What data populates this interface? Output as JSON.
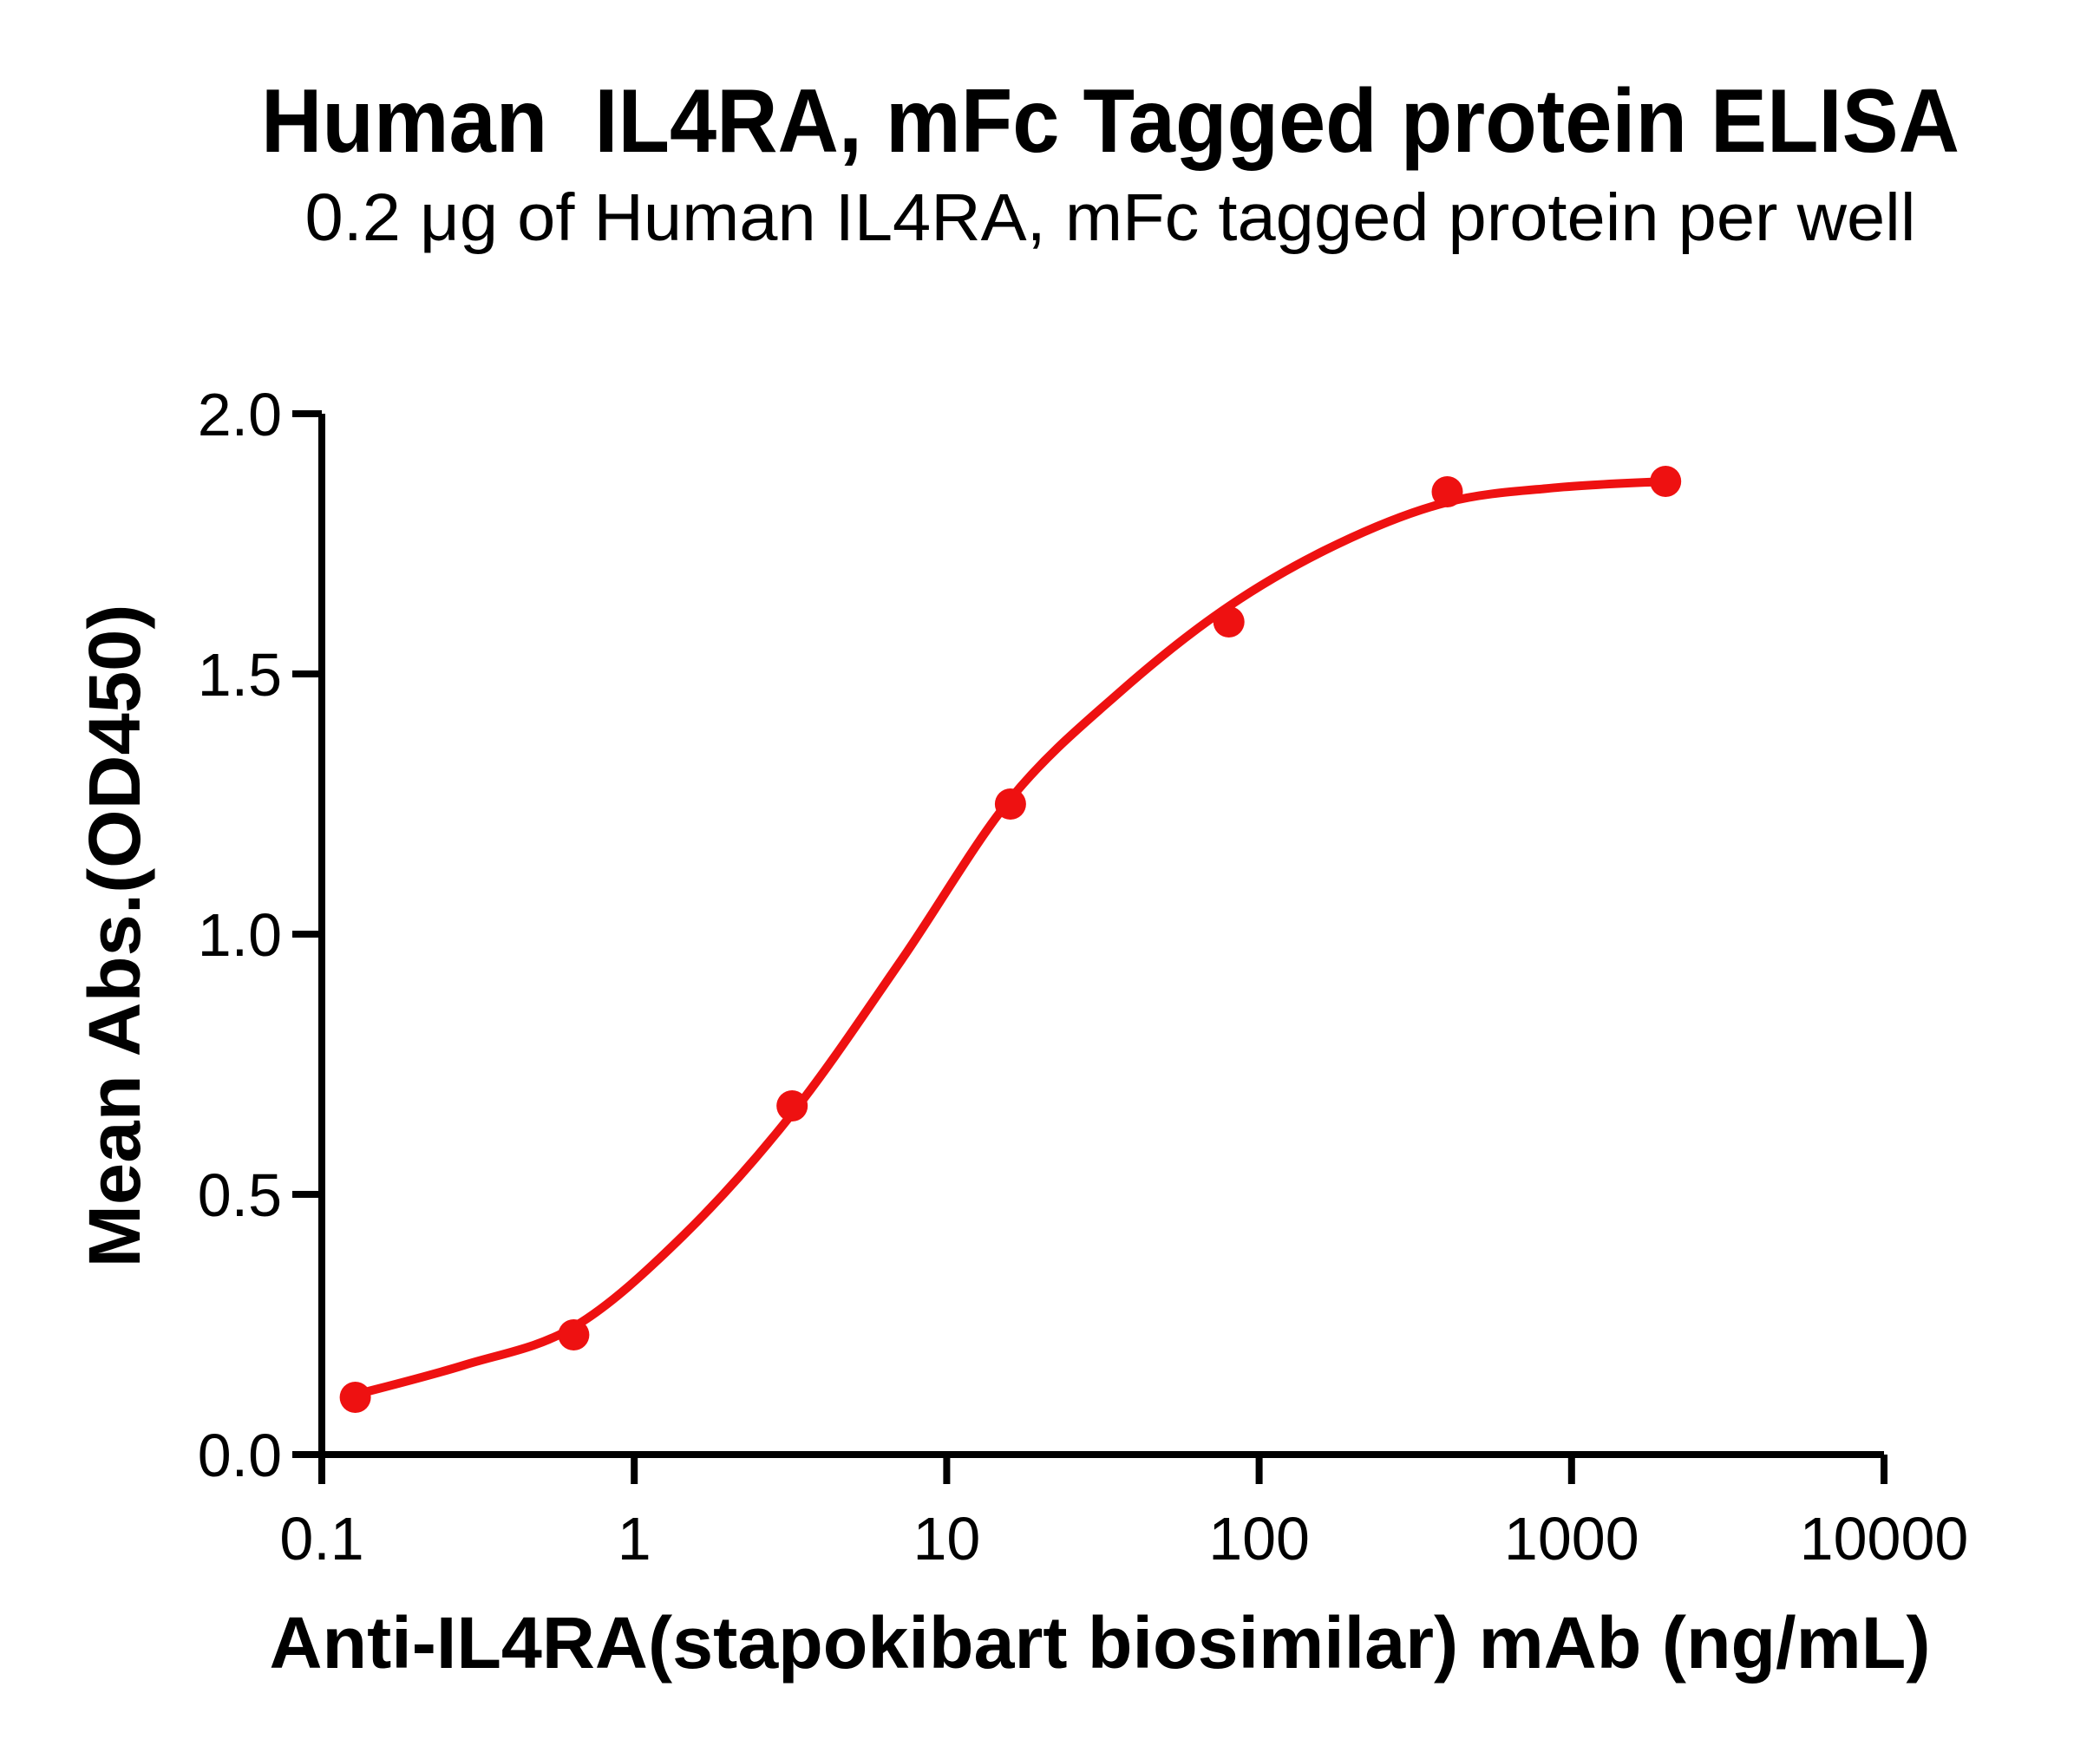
{
  "chart_data": {
    "type": "scatter",
    "title": "Human  IL4RA, mFc Tagged protein ELISA",
    "subtitle": "0.2 μg of Human IL4RA, mFc tagged protein per well",
    "xlabel": "Anti-IL4RA(stapokibart biosimilar) mAb (ng/mL)",
    "ylabel": "Mean Abs.(OD450)",
    "x_scale": "log10",
    "xlim": [
      0.1,
      10000
    ],
    "ylim": [
      0.0,
      2.0
    ],
    "grid": false,
    "legend": "none",
    "background": "#FFFFFF",
    "axis_color": "#000000",
    "x_ticks": {
      "values": [
        0.1,
        1,
        10,
        100,
        1000,
        10000
      ],
      "labels": [
        "0.1",
        "1",
        "10",
        "100",
        "1000",
        "10000"
      ]
    },
    "y_ticks": {
      "values": [
        0.0,
        0.5,
        1.0,
        1.5,
        2.0
      ],
      "labels": [
        "0.0",
        "0.5",
        "1.0",
        "1.5",
        "2.0"
      ]
    },
    "series": [
      {
        "color": "#EE1111",
        "marker": "circle",
        "points": {
          "x": [
            0.128,
            0.64,
            3.2,
            16,
            80,
            400,
            2000
          ],
          "y": [
            0.11,
            0.23,
            0.67,
            1.25,
            1.6,
            1.85,
            1.87
          ]
        },
        "fit_curve": {
          "model": "4PL sigmoidal dose-response",
          "x": [
            0.128,
            0.286,
            0.64,
            1.43,
            3.2,
            7.16,
            16,
            35.8,
            80,
            179,
            400,
            894,
            2000
          ],
          "y": [
            0.115,
            0.172,
            0.245,
            0.42,
            0.655,
            0.95,
            1.26,
            1.465,
            1.63,
            1.75,
            1.83,
            1.858,
            1.87
          ]
        }
      }
    ]
  }
}
